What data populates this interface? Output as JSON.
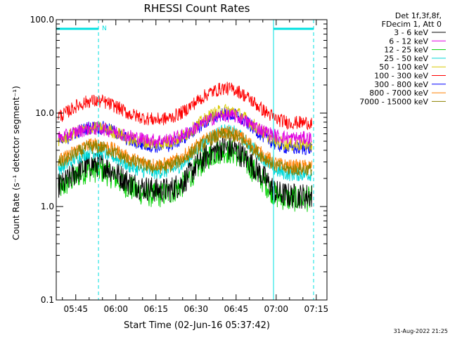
{
  "chart_data": {
    "type": "line",
    "title": "RHESSI Count Rates",
    "xlabel": "Start Time (02-Jun-16 05:37:42)",
    "ylabel": "Count Rate (s⁻¹ detector segment⁻¹)",
    "y_scale": "log",
    "ylim": [
      0.1,
      100.0
    ],
    "y_ticks": [
      "0.1",
      "1.0",
      "10.0",
      "100.0"
    ],
    "x_ticks": [
      "05:45",
      "06:00",
      "06:15",
      "06:30",
      "06:45",
      "07:00",
      "07:15"
    ],
    "x_tick_minutes": [
      45,
      60,
      75,
      90,
      105,
      120,
      135
    ],
    "xlim_minutes": [
      37.7,
      139.0
    ],
    "grid": false,
    "legend_position": "right",
    "legend_header": [
      "Det 1f,3f,8f,",
      "FDecim 1, Att 0"
    ],
    "annotation": {
      "text": "N",
      "color": "#00e0e0"
    },
    "night_intervals_minutes": [
      [
        37.7,
        53.5
      ],
      [
        119.0,
        134.0
      ]
    ],
    "footer": "31-Aug-2022 21:25",
    "series": [
      {
        "name": "3 - 6 keV",
        "color": "#000000",
        "values": [
          1.7,
          2.3,
          2.8,
          2.8,
          2.3,
          1.8,
          1.6,
          1.5,
          1.5,
          1.8,
          2.7,
          3.7,
          4.3,
          4.0,
          3.0,
          2.1,
          1.4,
          1.3
        ]
      },
      {
        "name": "6 - 12 keV",
        "color": "#e000e0",
        "values": [
          5.5,
          6.3,
          6.8,
          6.8,
          6.3,
          5.7,
          5.3,
          5.1,
          5.2,
          5.8,
          7.0,
          8.5,
          9.5,
          9.2,
          7.8,
          6.5,
          5.7,
          5.4
        ]
      },
      {
        "name": "12 - 25 keV",
        "color": "#00d000",
        "values": [
          1.6,
          2.1,
          2.5,
          2.4,
          2.0,
          1.6,
          1.4,
          1.3,
          1.4,
          1.7,
          2.5,
          3.5,
          4.0,
          3.7,
          2.7,
          1.9,
          1.3,
          1.2
        ]
      },
      {
        "name": "25 - 50 keV",
        "color": "#00d8d8",
        "values": [
          2.6,
          3.3,
          3.8,
          3.8,
          3.3,
          2.7,
          2.4,
          2.3,
          2.4,
          2.8,
          4.0,
          5.5,
          6.5,
          6.2,
          4.6,
          3.3,
          2.4,
          2.2
        ]
      },
      {
        "name": "50 - 100 keV",
        "color": "#d8c800",
        "values": [
          5.2,
          6.2,
          6.9,
          6.9,
          6.2,
          5.3,
          4.9,
          4.7,
          4.9,
          5.6,
          7.2,
          9.3,
          10.8,
          10.3,
          8.1,
          6.2,
          5.0,
          4.6
        ]
      },
      {
        "name": "100 - 300 keV",
        "color": "#ff0000",
        "values": [
          9.5,
          11.8,
          13.5,
          13.3,
          11.8,
          9.8,
          8.9,
          8.5,
          8.8,
          10.2,
          13.2,
          16.5,
          18.5,
          17.8,
          14.2,
          10.8,
          8.6,
          7.9
        ]
      },
      {
        "name": "300 - 800 keV",
        "color": "#0000ff",
        "values": [
          5.0,
          6.2,
          7.0,
          7.0,
          6.2,
          5.1,
          4.6,
          4.4,
          4.5,
          5.3,
          6.8,
          8.6,
          9.8,
          9.4,
          7.5,
          5.7,
          4.6,
          4.2
        ]
      },
      {
        "name": "800 - 7000 keV",
        "color": "#ff8000",
        "values": [
          3.2,
          4.0,
          4.6,
          4.6,
          4.0,
          3.3,
          3.0,
          2.8,
          2.9,
          3.4,
          4.4,
          5.5,
          6.2,
          6.0,
          4.8,
          3.6,
          2.9,
          2.7
        ]
      },
      {
        "name": "7000 - 15000 keV",
        "color": "#8b8000",
        "values": [
          3.0,
          3.7,
          4.3,
          4.3,
          3.7,
          3.1,
          2.8,
          2.6,
          2.7,
          3.2,
          4.1,
          5.2,
          5.9,
          5.6,
          4.5,
          3.4,
          2.7,
          2.5
        ]
      }
    ],
    "x_minutes": [
      40,
      45,
      50,
      55,
      60,
      65,
      70,
      75,
      80,
      85,
      90,
      95,
      100,
      105,
      110,
      115,
      120,
      125
    ],
    "draw_order": [
      2,
      0,
      3,
      7,
      8,
      6,
      4,
      1,
      5
    ]
  }
}
